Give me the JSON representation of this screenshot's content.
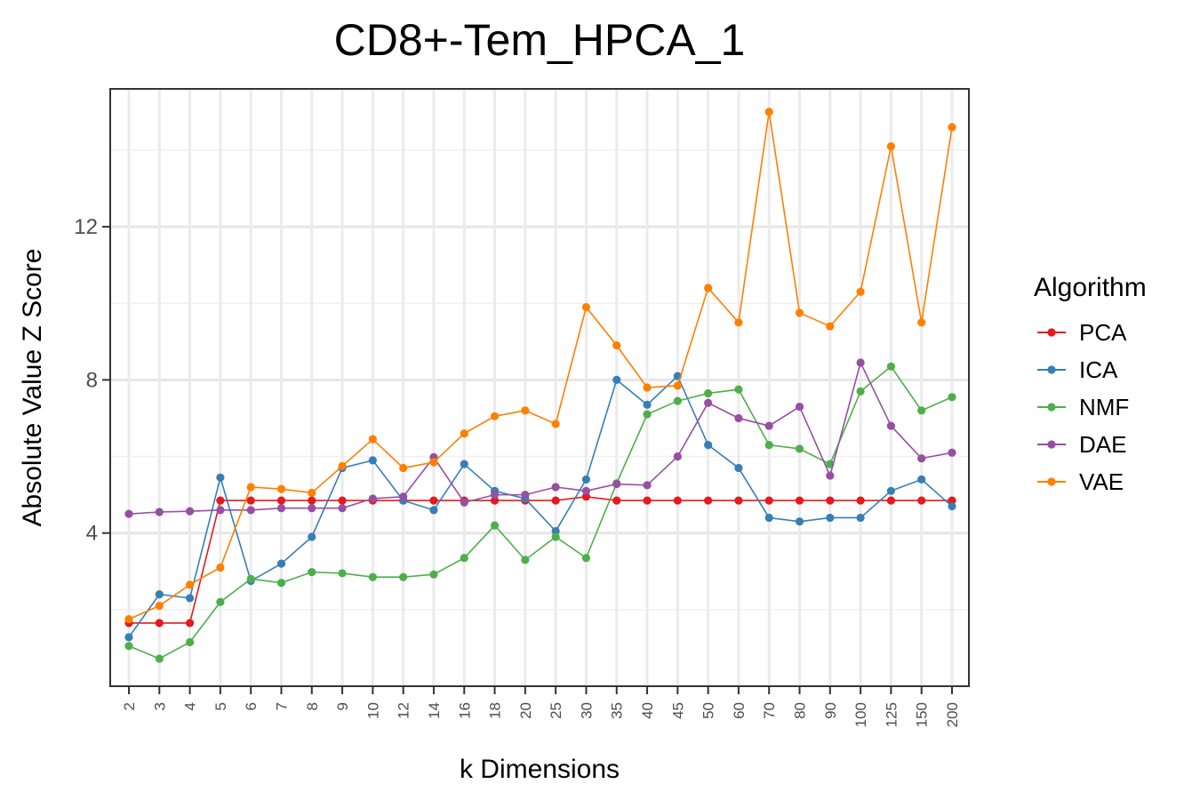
{
  "chart_data": {
    "type": "line",
    "title": "CD8+-Tem_HPCA_1",
    "xlabel": "k Dimensions",
    "ylabel": "Absolute Value Z Score",
    "categories": [
      "2",
      "3",
      "4",
      "5",
      "6",
      "7",
      "8",
      "9",
      "10",
      "12",
      "14",
      "16",
      "18",
      "20",
      "25",
      "30",
      "35",
      "40",
      "45",
      "50",
      "60",
      "70",
      "80",
      "90",
      "100",
      "125",
      "150",
      "200"
    ],
    "y_ticks": [
      "4",
      "8",
      "12"
    ],
    "ylim": [
      0.0,
      15.6
    ],
    "grid": true,
    "legend": {
      "title": "Algorithm",
      "position": "right"
    },
    "series": [
      {
        "name": "PCA",
        "color": "#e41a1c",
        "values": [
          1.65,
          1.65,
          1.65,
          4.85,
          4.85,
          4.85,
          4.85,
          4.85,
          4.85,
          4.85,
          4.85,
          4.85,
          4.85,
          4.85,
          4.85,
          4.95,
          4.85,
          4.85,
          4.85,
          4.85,
          4.85,
          4.85,
          4.85,
          4.85,
          4.85,
          4.85,
          4.85,
          4.85
        ]
      },
      {
        "name": "ICA",
        "color": "#377eb8",
        "values": [
          1.28,
          2.4,
          2.3,
          5.45,
          2.75,
          3.2,
          3.9,
          5.7,
          5.9,
          4.85,
          4.6,
          5.8,
          5.1,
          4.9,
          4.05,
          5.4,
          8.0,
          7.35,
          8.1,
          6.3,
          5.7,
          4.4,
          4.3,
          4.4,
          4.4,
          5.1,
          5.4,
          4.7
        ]
      },
      {
        "name": "NMF",
        "color": "#4daf4a",
        "values": [
          1.05,
          0.72,
          1.15,
          2.2,
          2.8,
          2.7,
          2.98,
          2.95,
          2.85,
          2.85,
          2.92,
          3.35,
          4.2,
          3.3,
          3.9,
          3.35,
          5.3,
          7.1,
          7.45,
          7.65,
          7.75,
          6.3,
          6.2,
          5.8,
          7.7,
          8.35,
          7.2,
          7.55
        ]
      },
      {
        "name": "DAE",
        "color": "#984ea3",
        "values": [
          4.5,
          4.55,
          4.57,
          4.6,
          4.6,
          4.65,
          4.65,
          4.65,
          4.9,
          4.95,
          5.98,
          4.8,
          5.0,
          5.0,
          5.2,
          5.1,
          5.28,
          5.25,
          6.0,
          7.4,
          7.0,
          6.8,
          7.3,
          5.5,
          8.45,
          6.8,
          5.95,
          6.1
        ]
      },
      {
        "name": "VAE",
        "color": "#ff7f00",
        "values": [
          1.75,
          2.1,
          2.65,
          3.1,
          5.2,
          5.15,
          5.05,
          5.75,
          6.45,
          5.7,
          5.85,
          6.6,
          7.05,
          7.2,
          6.85,
          9.9,
          8.9,
          7.8,
          7.85,
          10.4,
          9.5,
          15.0,
          9.75,
          9.4,
          10.3,
          14.1,
          9.5,
          14.6
        ]
      }
    ]
  }
}
